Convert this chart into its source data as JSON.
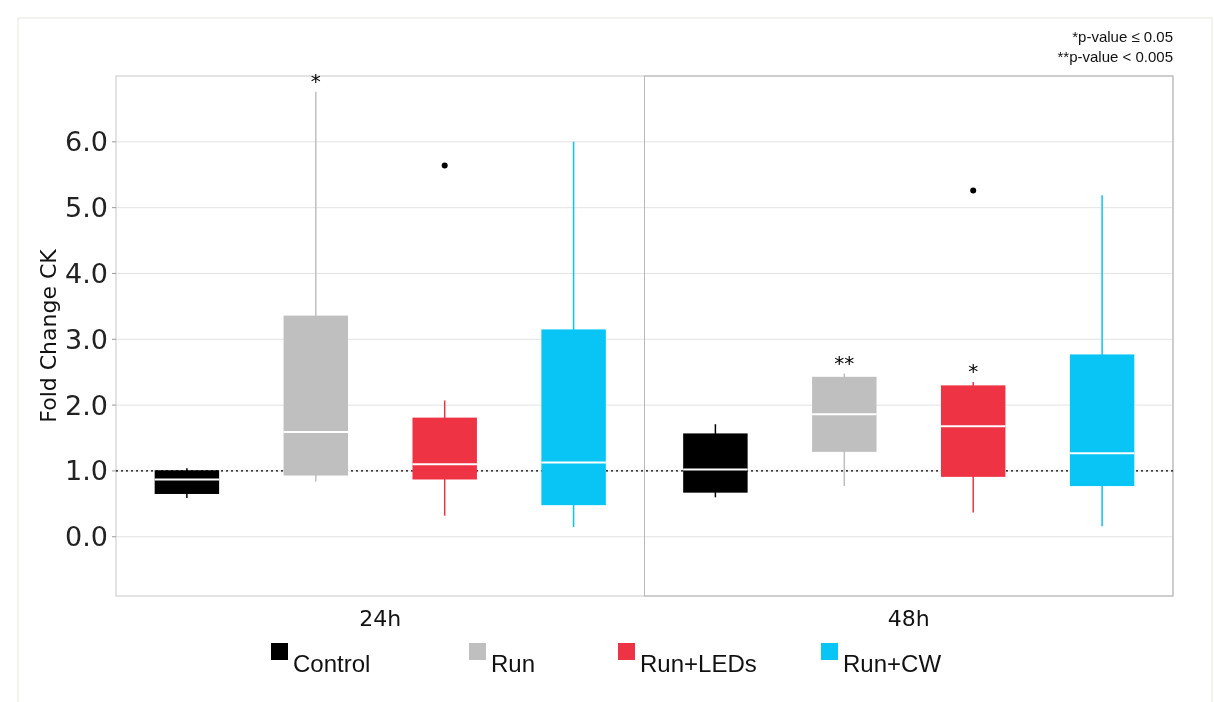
{
  "chart_data": {
    "type": "box",
    "ylabel": "Fold Change CK",
    "categories": [
      "24h",
      "48h"
    ],
    "series": [
      {
        "name": "Control",
        "color": "#000000",
        "boxes": [
          {
            "low": 0.59,
            "q1": 0.65,
            "median": 0.87,
            "q3": 1.01,
            "high": 1.04
          },
          {
            "low": 0.6,
            "q1": 0.67,
            "median": 1.02,
            "q3": 1.57,
            "high": 1.71
          }
        ]
      },
      {
        "name": "Run",
        "color": "#bfbfbf",
        "boxes": [
          {
            "low": 0.84,
            "q1": 0.93,
            "median": 1.59,
            "q3": 3.36,
            "high": 6.76
          },
          {
            "low": 0.77,
            "q1": 1.29,
            "median": 1.86,
            "q3": 2.43,
            "high": 2.48
          }
        ]
      },
      {
        "name": "Run+LEDs",
        "color": "#ee3344",
        "boxes": [
          {
            "low": 0.32,
            "q1": 0.87,
            "median": 1.1,
            "q3": 1.81,
            "high": 2.07,
            "outliers": [
              5.64
            ]
          },
          {
            "low": 0.37,
            "q1": 0.91,
            "median": 1.68,
            "q3": 2.3,
            "high": 2.35,
            "outliers": [
              5.26
            ]
          }
        ]
      },
      {
        "name": "Run+CW",
        "color": "#08c5f5",
        "boxes": [
          {
            "low": 0.15,
            "q1": 0.48,
            "median": 1.13,
            "q3": 3.15,
            "high": 6.0
          },
          {
            "low": 0.16,
            "q1": 0.77,
            "median": 1.27,
            "q3": 2.77,
            "high": 5.19
          }
        ]
      }
    ],
    "ylim": [
      -0.9,
      7.0
    ],
    "yticks": [
      {
        "value": 0,
        "label": "0.0"
      },
      {
        "value": 1,
        "label": "1.0"
      },
      {
        "value": 2,
        "label": "2.0"
      },
      {
        "value": 3,
        "label": "3.0"
      },
      {
        "value": 4,
        "label": "4.0"
      },
      {
        "value": 5,
        "label": "5.0"
      },
      {
        "value": 6,
        "label": "6.0"
      }
    ],
    "grid": "y",
    "legend": "bottom",
    "ref_lines": [
      {
        "axis": "y",
        "value": 1,
        "line_style": "dotted",
        "color": "#000000"
      }
    ],
    "annotations": [
      "*p-value ≤ 0.05",
      "**p-value < 0.005",
      "*",
      "**",
      "*"
    ]
  }
}
